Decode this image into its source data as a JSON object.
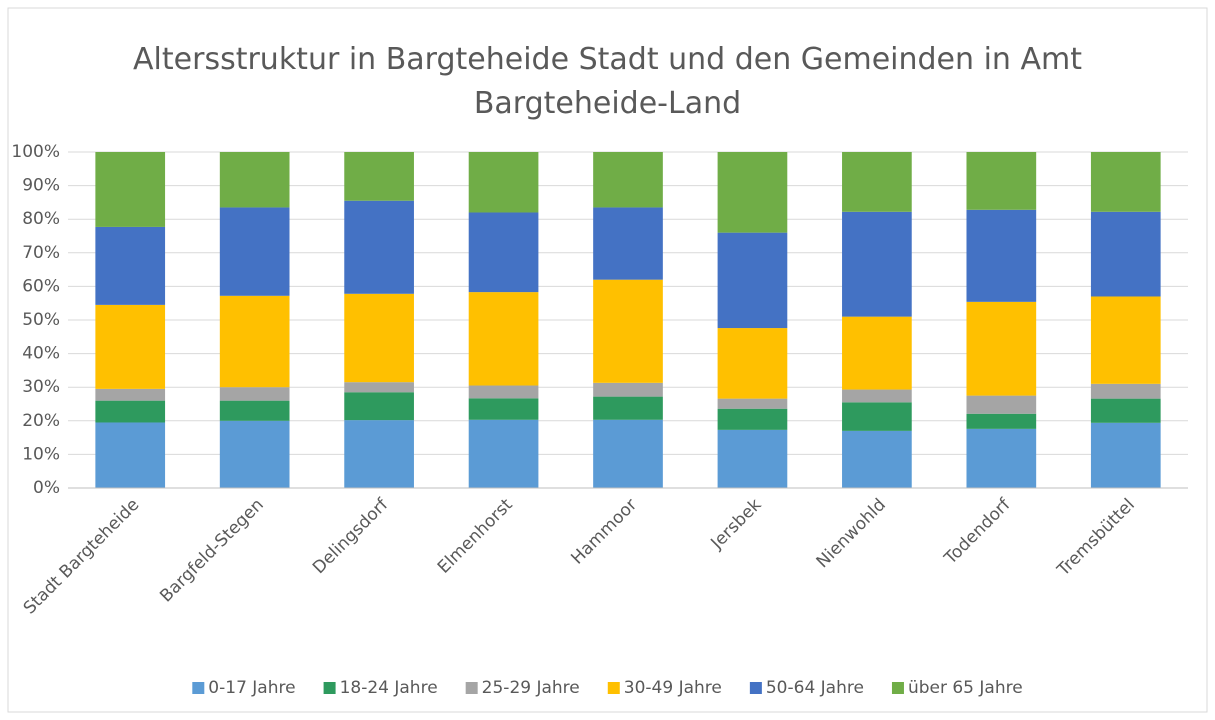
{
  "chart_data": {
    "type": "stacked_bar",
    "title": "Altersstruktur in Bargteheide Stadt und den Gemeinden in Amt Bargteheide-Land",
    "categories": [
      "Stadt Bargteheide",
      "Bargfeld-Stegen",
      "Delingsdorf",
      "Elmenhorst",
      "Hammoor",
      "Jersbek",
      "Nienwohld",
      "Todendorf",
      "Tremsbüttel"
    ],
    "series": [
      {
        "name": "0-17 Jahre",
        "color": "#5b9bd5",
        "values": [
          19.5,
          20,
          20.2,
          20.3,
          20.3,
          17.3,
          17,
          17.6,
          19.4
        ]
      },
      {
        "name": "18-24 Jahre",
        "color": "#2e9a5e",
        "values": [
          6.5,
          6,
          8.3,
          6.4,
          6.9,
          6.3,
          8.5,
          4.5,
          7.2
        ]
      },
      {
        "name": "25-29 Jahre",
        "color": "#a5a5a5",
        "values": [
          3.5,
          4,
          3,
          3.8,
          4.1,
          3,
          3.8,
          5.4,
          4.4
        ]
      },
      {
        "name": "30-49 Jahre",
        "color": "#ffc000",
        "values": [
          25,
          27.2,
          26.3,
          27.8,
          30.7,
          21,
          21.7,
          27.9,
          26
        ]
      },
      {
        "name": "50-64 Jahre",
        "color": "#4472c4",
        "values": [
          23.2,
          26.3,
          27.7,
          23.7,
          21.5,
          28.4,
          31.2,
          27.4,
          25.2
        ]
      },
      {
        "name": "über 65 Jahre",
        "color": "#70ad47",
        "values": [
          22.3,
          16.5,
          14.5,
          18,
          16.5,
          24,
          17.8,
          17.2,
          17.8
        ]
      }
    ],
    "ylim": [
      0,
      100
    ],
    "yticks": [
      {
        "value": 0,
        "label": "0%"
      },
      {
        "value": 10,
        "label": "10%"
      },
      {
        "value": 20,
        "label": "20%"
      },
      {
        "value": 30,
        "label": "30%"
      },
      {
        "value": 40,
        "label": "40%"
      },
      {
        "value": 50,
        "label": "50%"
      },
      {
        "value": 60,
        "label": "60%"
      },
      {
        "value": 70,
        "label": "70%"
      },
      {
        "value": 80,
        "label": "80%"
      },
      {
        "value": 90,
        "label": "90%"
      },
      {
        "value": 100,
        "label": "100%"
      }
    ],
    "grid": true,
    "legend": "bottom"
  }
}
